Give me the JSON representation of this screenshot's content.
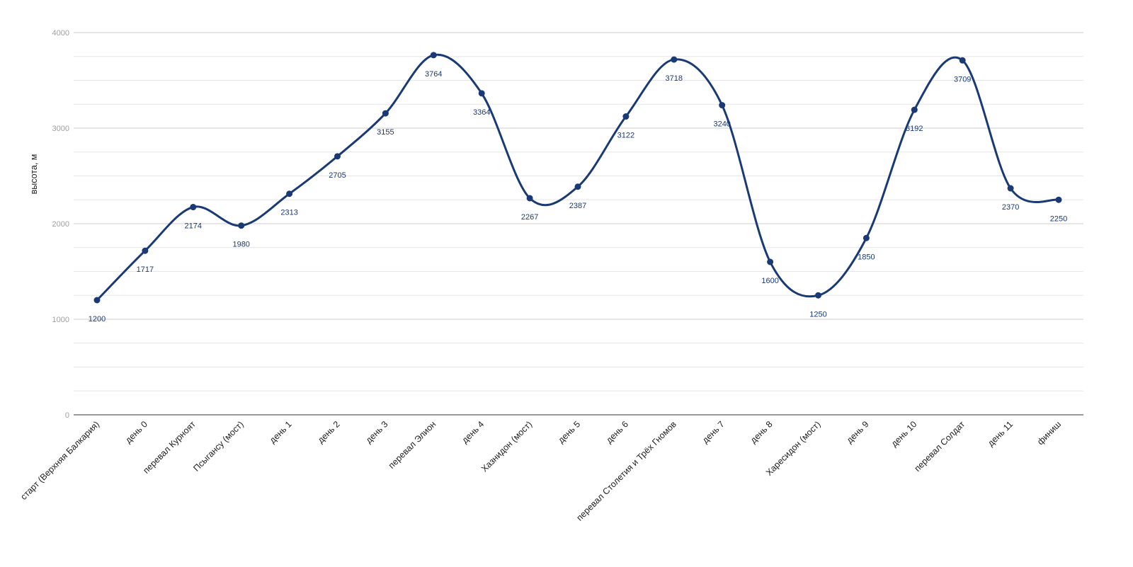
{
  "chart_data": {
    "type": "line",
    "title": "",
    "xlabel": "",
    "ylabel": "высота, м",
    "ylim": [
      0,
      4000
    ],
    "yticks": [
      0,
      1000,
      2000,
      3000,
      4000
    ],
    "grid": true,
    "smooth": true,
    "categories": [
      "старт (Верхняя Балкария)",
      "день 0",
      "перевал Курноят",
      "Псыгансу (мост)",
      "день 1",
      "день 2",
      "день 3",
      "перевал Элион",
      "день 4",
      "Хазнидон (мост)",
      "день 5",
      "день 6",
      "перевал Столетия и Трёх Гномов",
      "день 7",
      "день 8",
      "Харесидон (мост)",
      "день 9",
      "день 10",
      "перевал Солдат",
      "день 11",
      "финиш"
    ],
    "series": [
      {
        "color": "#1a3a75",
        "values": [
          1200,
          1717,
          2174,
          1980,
          2313,
          2705,
          3155,
          3764,
          3364,
          2267,
          2387,
          3122,
          3718,
          3240,
          1600,
          1250,
          1850,
          3192,
          3709,
          2370,
          2250
        ]
      }
    ]
  }
}
